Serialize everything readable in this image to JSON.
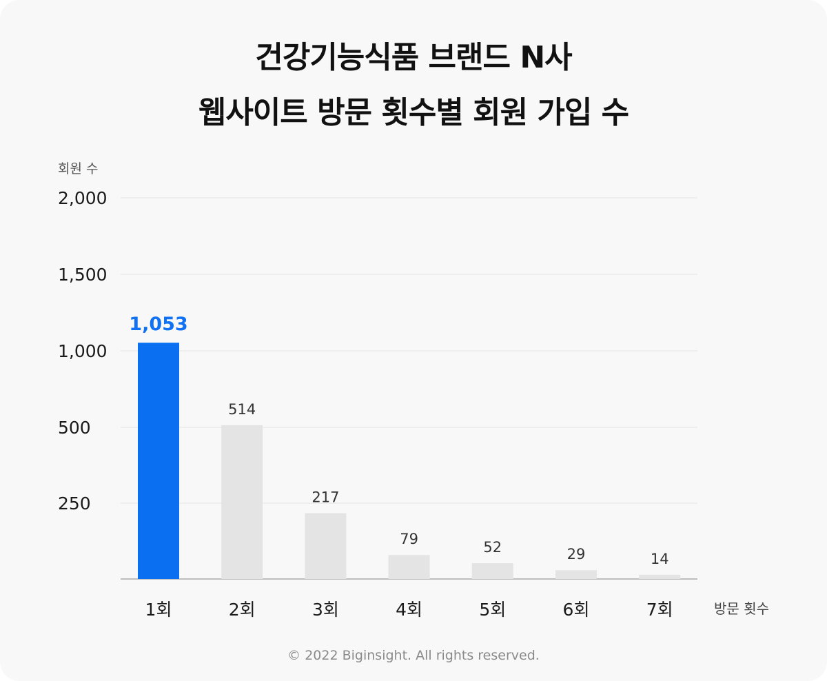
{
  "title_line1": "건강기능식품 브랜드 N사",
  "title_line2": "웹사이트 방문 횟수별 회원 가입 수",
  "footer": "© 2022 Biginsight. All rights reserved.",
  "chart_data": {
    "type": "bar",
    "ylabel": "회원 수",
    "xlabel": "방문 횟수",
    "categories": [
      "1회",
      "2회",
      "3회",
      "4회",
      "5회",
      "6회",
      "7회"
    ],
    "values": [
      1053,
      514,
      217,
      79,
      52,
      29,
      14
    ],
    "value_labels": [
      "1,053",
      "514",
      "217",
      "79",
      "52",
      "29",
      "14"
    ],
    "yticks": [
      250,
      500,
      1000,
      1500,
      2000
    ],
    "ytick_labels": [
      "250",
      "500",
      "1,000",
      "1,500",
      "2,000"
    ],
    "grid": true,
    "highlight_index": 0,
    "colors": {
      "highlight": "#0a6ff0",
      "bar": "#e4e4e4",
      "grid": "#e3e3e3",
      "axis": "#9a9a9a"
    }
  }
}
